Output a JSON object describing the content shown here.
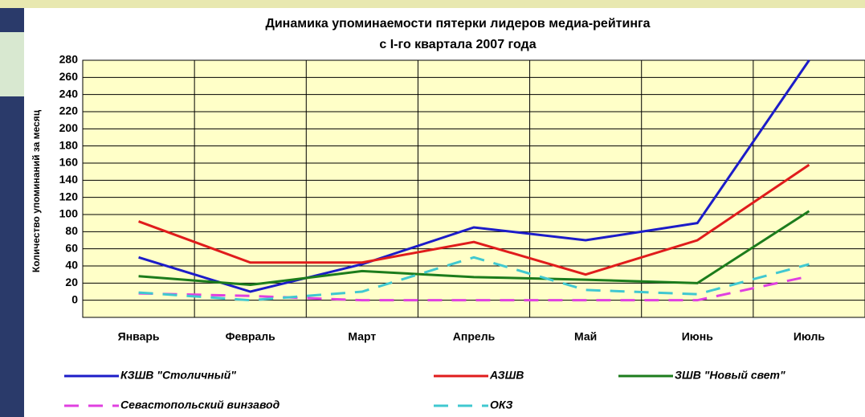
{
  "chart_data": {
    "type": "line",
    "title": "Динамика упоминаемости пятерки лидеров медиа-рейтинга",
    "subtitle": "с I-го квартала 2007 года",
    "y_label": "Количество упоминаний за месяц",
    "categories": [
      "Январь",
      "Февраль",
      "Март",
      "Апрель",
      "Май",
      "Июнь",
      "Июль"
    ],
    "series": [
      {
        "name": "КЗШВ \"Столичный\"",
        "color": "#1c1cc8",
        "style": "solid",
        "values": [
          50,
          10,
          42,
          85,
          70,
          90,
          280
        ]
      },
      {
        "name": "АЗШВ",
        "color": "#e01c1c",
        "style": "solid",
        "values": [
          92,
          44,
          44,
          68,
          30,
          70,
          158
        ]
      },
      {
        "name": "ЗШВ \"Новый свет\"",
        "color": "#1c7c1c",
        "style": "solid",
        "values": [
          28,
          18,
          34,
          27,
          24,
          20,
          104
        ]
      },
      {
        "name": "Севастопольский винзавод",
        "color": "#e040e0",
        "style": "dashed",
        "values": [
          8,
          5,
          0,
          0,
          0,
          0,
          28
        ]
      },
      {
        "name": "ОКЗ",
        "color": "#40c8d0",
        "style": "dashed",
        "values": [
          9,
          0,
          10,
          50,
          12,
          7,
          42
        ]
      }
    ],
    "ylim": [
      -20,
      280
    ],
    "yticks": [
      0,
      20,
      40,
      60,
      80,
      100,
      120,
      140,
      160,
      180,
      200,
      220,
      240,
      260,
      280
    ],
    "grid": true
  }
}
